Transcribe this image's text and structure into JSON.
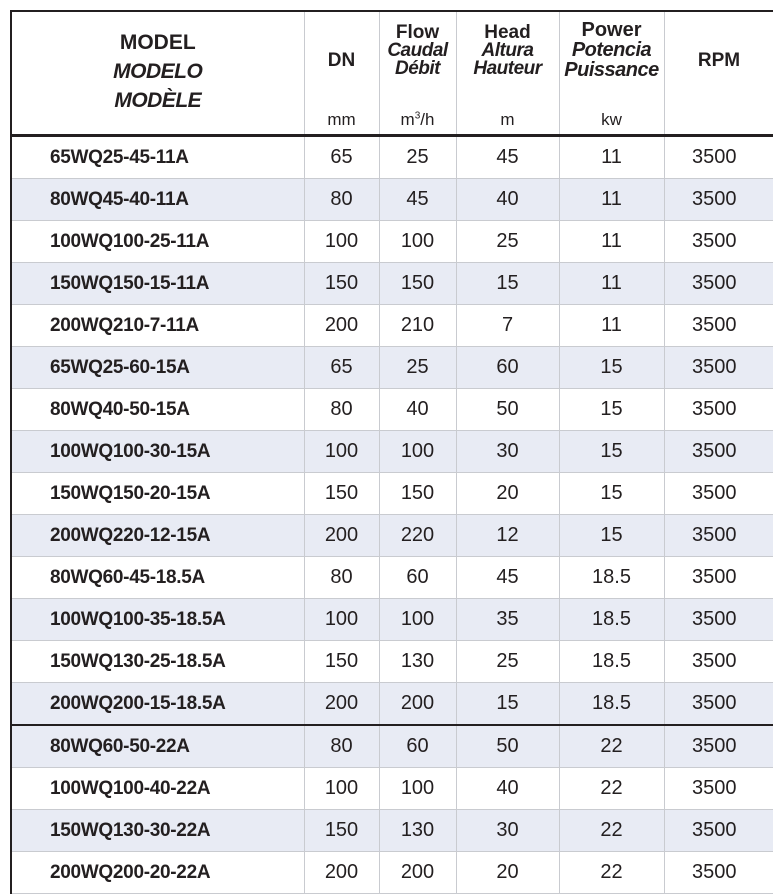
{
  "header": {
    "model": [
      "MODEL",
      "MODELO",
      "MODÈLE"
    ],
    "dn": {
      "label": "DN",
      "unit": "mm"
    },
    "flow": {
      "label": [
        "Flow",
        "Caudal",
        "Débit"
      ],
      "unit_base": "m",
      "unit_sup": "3",
      "unit_tail": "/h"
    },
    "head": {
      "label": [
        "Head",
        "Altura",
        "Hauteur"
      ],
      "unit": "m"
    },
    "power": {
      "label": [
        "Power",
        "Potencia",
        "Puissance"
      ],
      "unit": "kw"
    },
    "rpm": {
      "label": "RPM"
    }
  },
  "rows": [
    [
      "65WQ25-45-11A",
      "65",
      "25",
      "45",
      "11",
      "3500"
    ],
    [
      "80WQ45-40-11A",
      "80",
      "45",
      "40",
      "11",
      "3500"
    ],
    [
      "100WQ100-25-11A",
      "100",
      "100",
      "25",
      "11",
      "3500"
    ],
    [
      "150WQ150-15-11A",
      "150",
      "150",
      "15",
      "11",
      "3500"
    ],
    [
      "200WQ210-7-11A",
      "200",
      "210",
      "7",
      "11",
      "3500"
    ],
    [
      "65WQ25-60-15A",
      "65",
      "25",
      "60",
      "15",
      "3500"
    ],
    [
      "80WQ40-50-15A",
      "80",
      "40",
      "50",
      "15",
      "3500"
    ],
    [
      "100WQ100-30-15A",
      "100",
      "100",
      "30",
      "15",
      "3500"
    ],
    [
      "150WQ150-20-15A",
      "150",
      "150",
      "20",
      "15",
      "3500"
    ],
    [
      "200WQ220-12-15A",
      "200",
      "220",
      "12",
      "15",
      "3500"
    ],
    [
      "80WQ60-45-18.5A",
      "80",
      "60",
      "45",
      "18.5",
      "3500"
    ],
    [
      "100WQ100-35-18.5A",
      "100",
      "100",
      "35",
      "18.5",
      "3500"
    ],
    [
      "150WQ130-25-18.5A",
      "150",
      "130",
      "25",
      "18.5",
      "3500"
    ],
    [
      "200WQ200-15-18.5A",
      "200",
      "200",
      "15",
      "18.5",
      "3500"
    ],
    [
      "80WQ60-50-22A",
      "80",
      "60",
      "50",
      "22",
      "3500"
    ],
    [
      "100WQ100-40-22A",
      "100",
      "100",
      "40",
      "22",
      "3500"
    ],
    [
      "150WQ130-30-22A",
      "150",
      "130",
      "30",
      "22",
      "3500"
    ],
    [
      "200WQ200-20-22A",
      "200",
      "200",
      "20",
      "22",
      "3500"
    ]
  ],
  "colors": {
    "shade": "#e8ebf4",
    "border": "#231f20"
  }
}
